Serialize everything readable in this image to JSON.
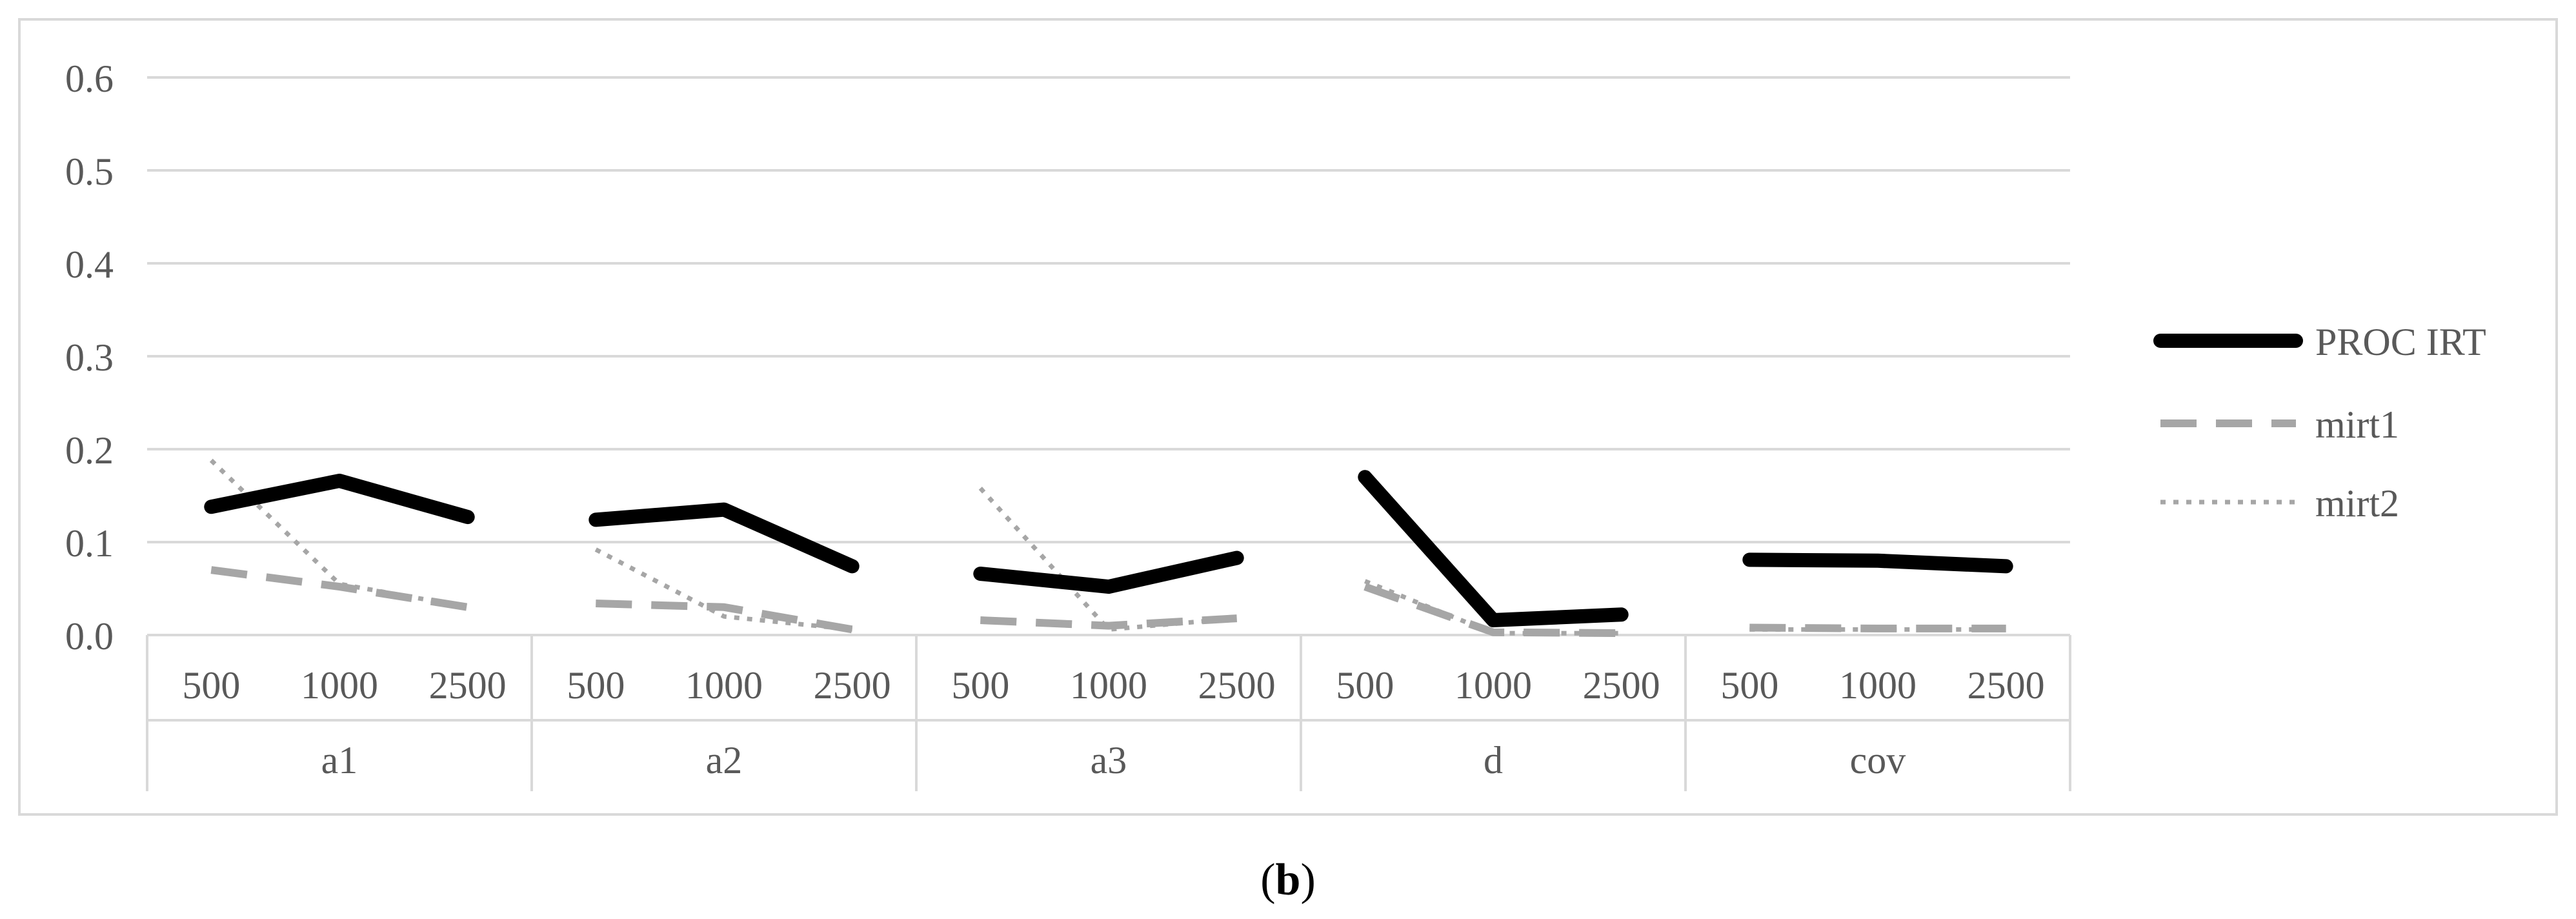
{
  "caption": {
    "open": "(",
    "label": "b",
    "close": ")"
  },
  "colors": {
    "proc_irt": "#000000",
    "mirt1": "#a6a6a6",
    "mirt2": "#a6a6a6",
    "grid": "#d9d9d9",
    "text": "#595959"
  },
  "chart_data": {
    "type": "line",
    "groups": [
      "a1",
      "a2",
      "a3",
      "d",
      "cov"
    ],
    "sample_sizes": [
      "500",
      "1000",
      "2500"
    ],
    "y_ticks": [
      "0.0",
      "0.1",
      "0.2",
      "0.3",
      "0.4",
      "0.5",
      "0.6"
    ],
    "ylim": [
      0,
      0.6
    ],
    "grid": true,
    "legend_position": "right",
    "series": [
      {
        "name": "PROC IRT",
        "style": "solid",
        "values": [
          [
            0.138,
            0.166,
            0.127
          ],
          [
            0.124,
            0.135,
            0.074
          ],
          [
            0.066,
            0.052,
            0.083
          ],
          [
            0.17,
            0.016,
            0.022
          ],
          [
            0.081,
            0.08,
            0.074
          ]
        ]
      },
      {
        "name": "mirt1",
        "style": "dashed",
        "values": [
          [
            0.07,
            0.052,
            0.03
          ],
          [
            0.034,
            0.03,
            0.006
          ],
          [
            0.016,
            0.01,
            0.018
          ],
          [
            0.052,
            0.003,
            0.002
          ],
          [
            0.008,
            0.007,
            0.007
          ]
        ]
      },
      {
        "name": "mirt2",
        "style": "dotted",
        "values": [
          [
            0.188,
            0.055,
            0.03
          ],
          [
            0.092,
            0.02,
            0.006
          ],
          [
            0.158,
            0.006,
            0.018
          ],
          [
            0.058,
            0.002,
            0.002
          ],
          [
            0.006,
            0.006,
            0.006
          ]
        ]
      }
    ]
  }
}
